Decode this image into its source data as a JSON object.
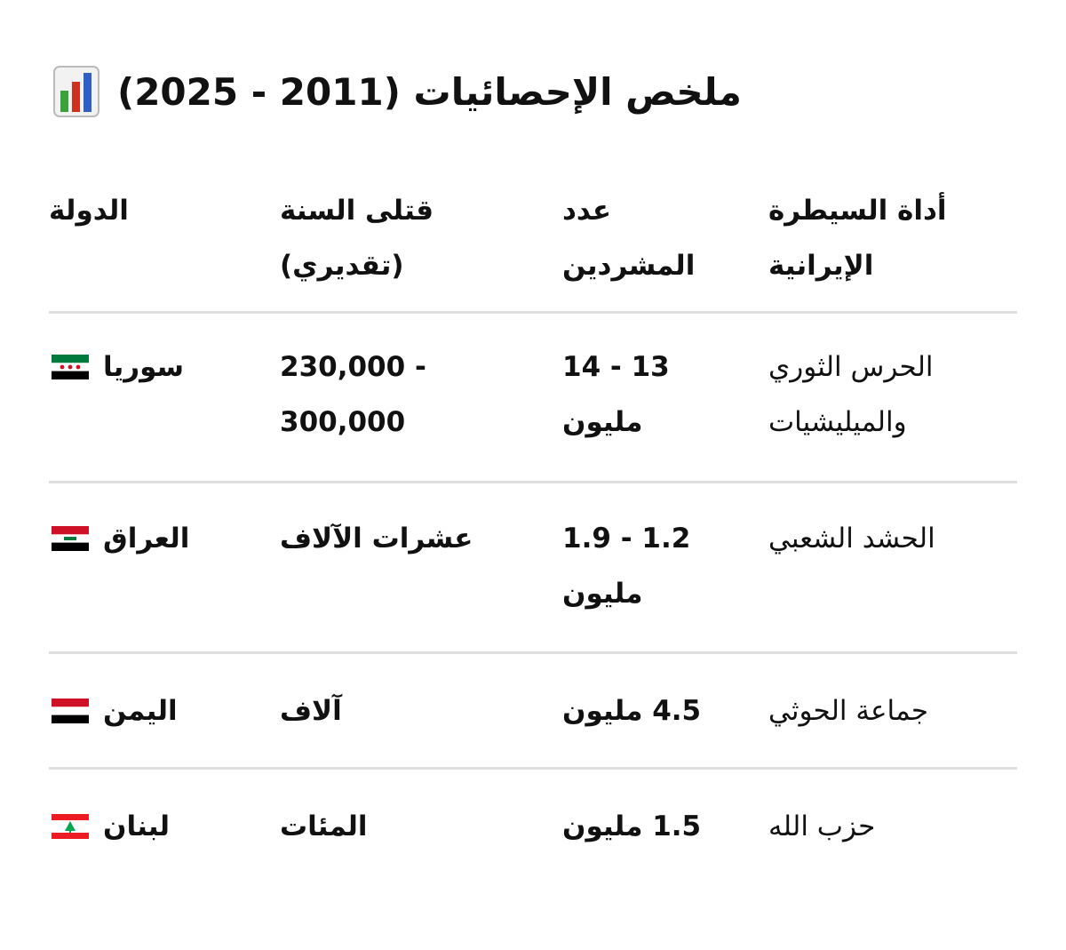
{
  "title": "ملخص الإحصائيات (2011 - 2025)",
  "table": {
    "headers": [
      "الدولة",
      "قتلى السنة (تقديري)",
      "عدد المشردين",
      "أداة السيطرة الإيرانية"
    ],
    "rows": [
      [
        "سوريا",
        "230,000 - 300,000",
        "13 - 14 مليون",
        "الحرس الثوري والميليشيات"
      ],
      [
        "العراق",
        "عشرات الآلاف",
        "1.2 - 1.9 مليون",
        "الحشد الشعبي"
      ],
      [
        "اليمن",
        "آلاف",
        "4.5 مليون",
        "جماعة الحوثي"
      ],
      [
        "لبنان",
        "المئات",
        "1.5 مليون",
        "حزب الله"
      ]
    ]
  }
}
